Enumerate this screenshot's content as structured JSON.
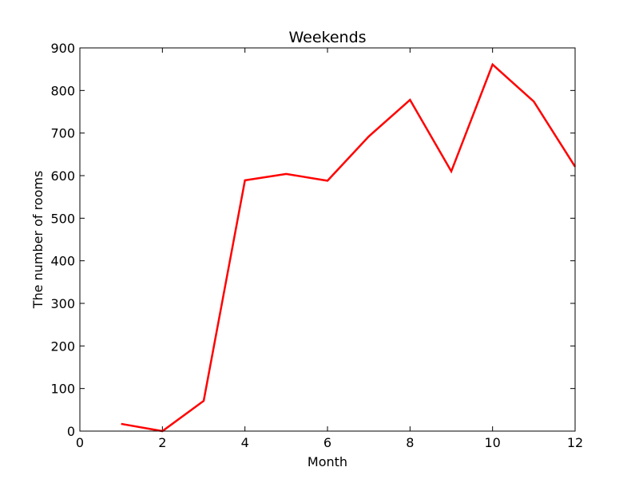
{
  "chart_data": {
    "type": "line",
    "title": "Weekends",
    "xlabel": "Month",
    "ylabel": "The number of rooms",
    "xlim": [
      0,
      12
    ],
    "ylim": [
      0,
      900
    ],
    "xticks": [
      0,
      2,
      4,
      6,
      8,
      10,
      12
    ],
    "yticks": [
      0,
      100,
      200,
      300,
      400,
      500,
      600,
      700,
      800,
      900
    ],
    "grid": false,
    "series": [
      {
        "color": "#ff0000",
        "x": [
          1,
          2,
          3,
          4,
          5,
          6,
          7,
          8,
          9,
          10,
          11,
          12
        ],
        "y": [
          17,
          0,
          71,
          589,
          604,
          588,
          692,
          778,
          610,
          861,
          774,
          621
        ]
      }
    ]
  }
}
